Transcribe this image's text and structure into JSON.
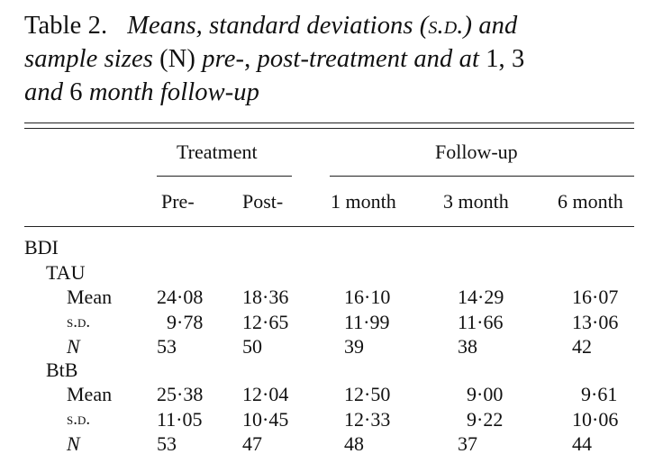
{
  "caption": {
    "label": "Table 2.",
    "parts": [
      {
        "text": "Means, standard deviations (",
        "style": "it"
      },
      {
        "text": "s.d.",
        "style": "sc"
      },
      {
        "text": ") and",
        "style": "it"
      },
      {
        "text": " sample sizes ",
        "style": "it"
      },
      {
        "text": "(N)",
        "style": "rm"
      },
      {
        "text": " pre-",
        "style": "it"
      },
      {
        "text": ", ",
        "style": "rm"
      },
      {
        "text": "post-treatment and at ",
        "style": "it"
      },
      {
        "text": "1, 3",
        "style": "rm"
      },
      {
        "text": " and ",
        "style": "it"
      },
      {
        "text": "6",
        "style": "rm"
      },
      {
        "text": " month follow-up",
        "style": "it"
      }
    ]
  },
  "header": {
    "groups": [
      "Treatment",
      "Follow-up"
    ],
    "columns": [
      "Pre-",
      "Post-",
      "1 month",
      "3 month",
      "6 month"
    ]
  },
  "measure": "BDI",
  "groups": [
    {
      "name": "TAU",
      "rows": [
        {
          "label": "Mean",
          "style": "rm",
          "values": [
            "24·08",
            "18·36",
            "16·10",
            "14·29",
            "16·07"
          ]
        },
        {
          "label": "s.d.",
          "style": "sc",
          "values": [
            "9·78",
            "12·65",
            "11·99",
            "11·66",
            "13·06"
          ]
        },
        {
          "label": "N",
          "style": "it",
          "values": [
            "53",
            "50",
            "39",
            "38",
            "42"
          ]
        }
      ]
    },
    {
      "name": "BtB",
      "rows": [
        {
          "label": "Mean",
          "style": "rm",
          "values": [
            "25·38",
            "12·04",
            "12·50",
            "9·00",
            "9·61"
          ]
        },
        {
          "label": "s.d.",
          "style": "sc",
          "values": [
            "11·05",
            "10·45",
            "12·33",
            "9·22",
            "10·06"
          ]
        },
        {
          "label": "N",
          "style": "it",
          "values": [
            "53",
            "47",
            "48",
            "37",
            "44"
          ]
        }
      ]
    }
  ]
}
